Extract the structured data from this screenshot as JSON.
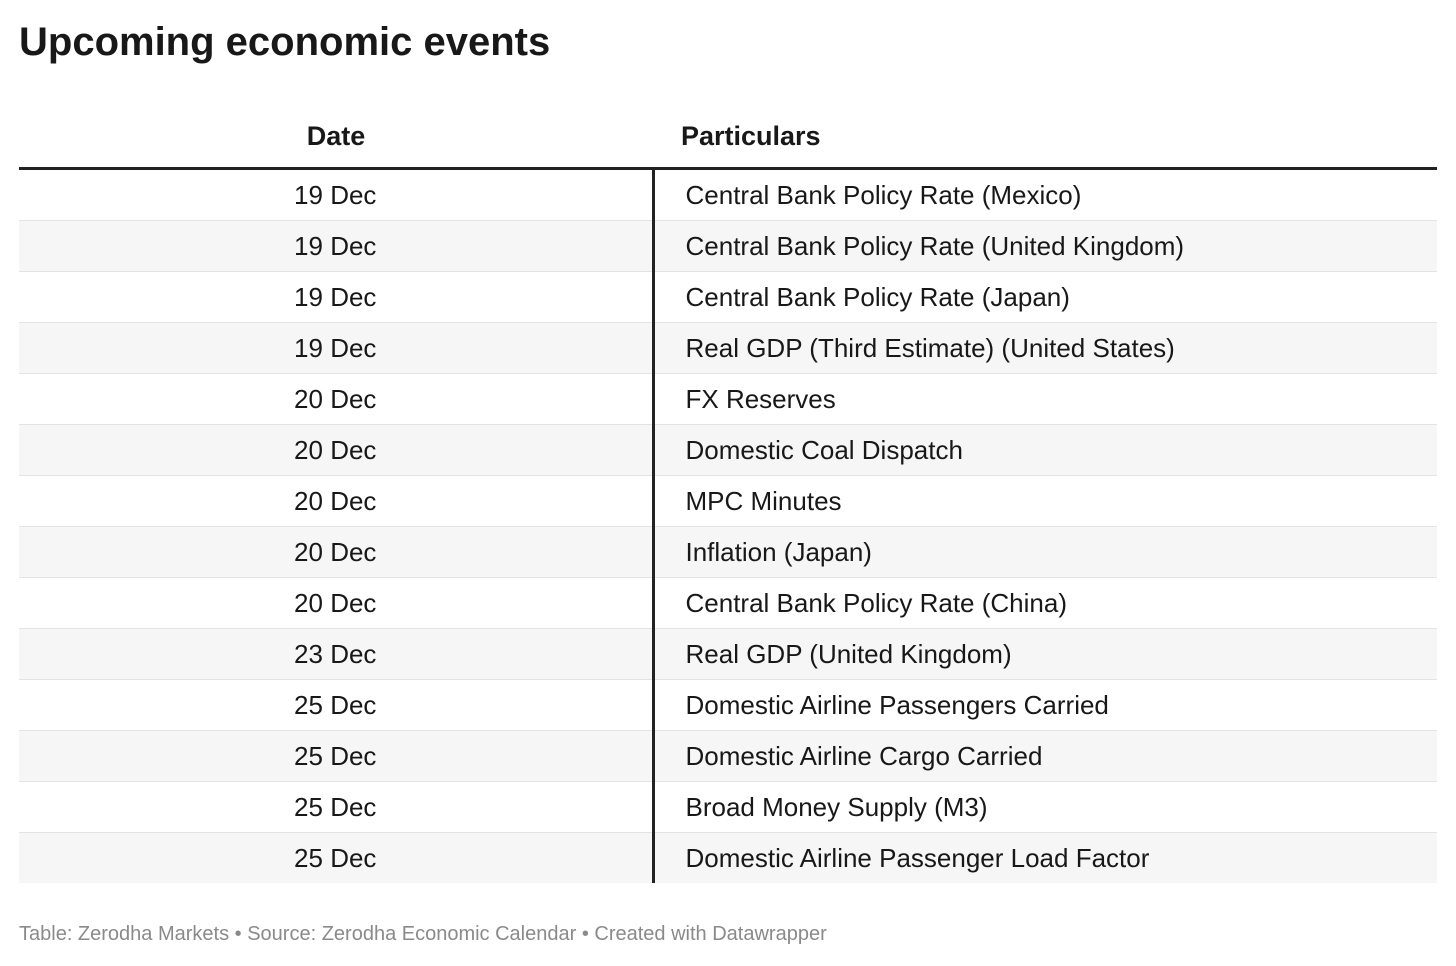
{
  "header": {
    "title": "Upcoming economic events"
  },
  "table": {
    "columns": [
      "Date",
      "Particulars"
    ],
    "rows": [
      [
        "19 Dec",
        "Central Bank Policy Rate (Mexico)"
      ],
      [
        "19 Dec",
        "Central Bank Policy Rate (United Kingdom)"
      ],
      [
        "19 Dec",
        "Central Bank Policy Rate (Japan)"
      ],
      [
        "19 Dec",
        "Real GDP (Third Estimate) (United States)"
      ],
      [
        "20 Dec",
        "FX Reserves"
      ],
      [
        "20 Dec",
        "Domestic Coal Dispatch"
      ],
      [
        "20 Dec",
        "MPC Minutes"
      ],
      [
        "20 Dec",
        "Inflation (Japan)"
      ],
      [
        "20 Dec",
        "Central Bank Policy Rate (China)"
      ],
      [
        "23 Dec",
        "Real GDP (United Kingdom)"
      ],
      [
        "25 Dec",
        "Domestic Airline Passengers Carried"
      ],
      [
        "25 Dec",
        "Domestic Airline Cargo Carried"
      ],
      [
        "25 Dec",
        "Broad Money Supply (M3)"
      ],
      [
        "25 Dec",
        "Domestic Airline Passenger Load Factor"
      ]
    ]
  },
  "footer": {
    "text": "Table: Zerodha Markets • Source: Zerodha Economic Calendar • Created with Datawrapper"
  }
}
